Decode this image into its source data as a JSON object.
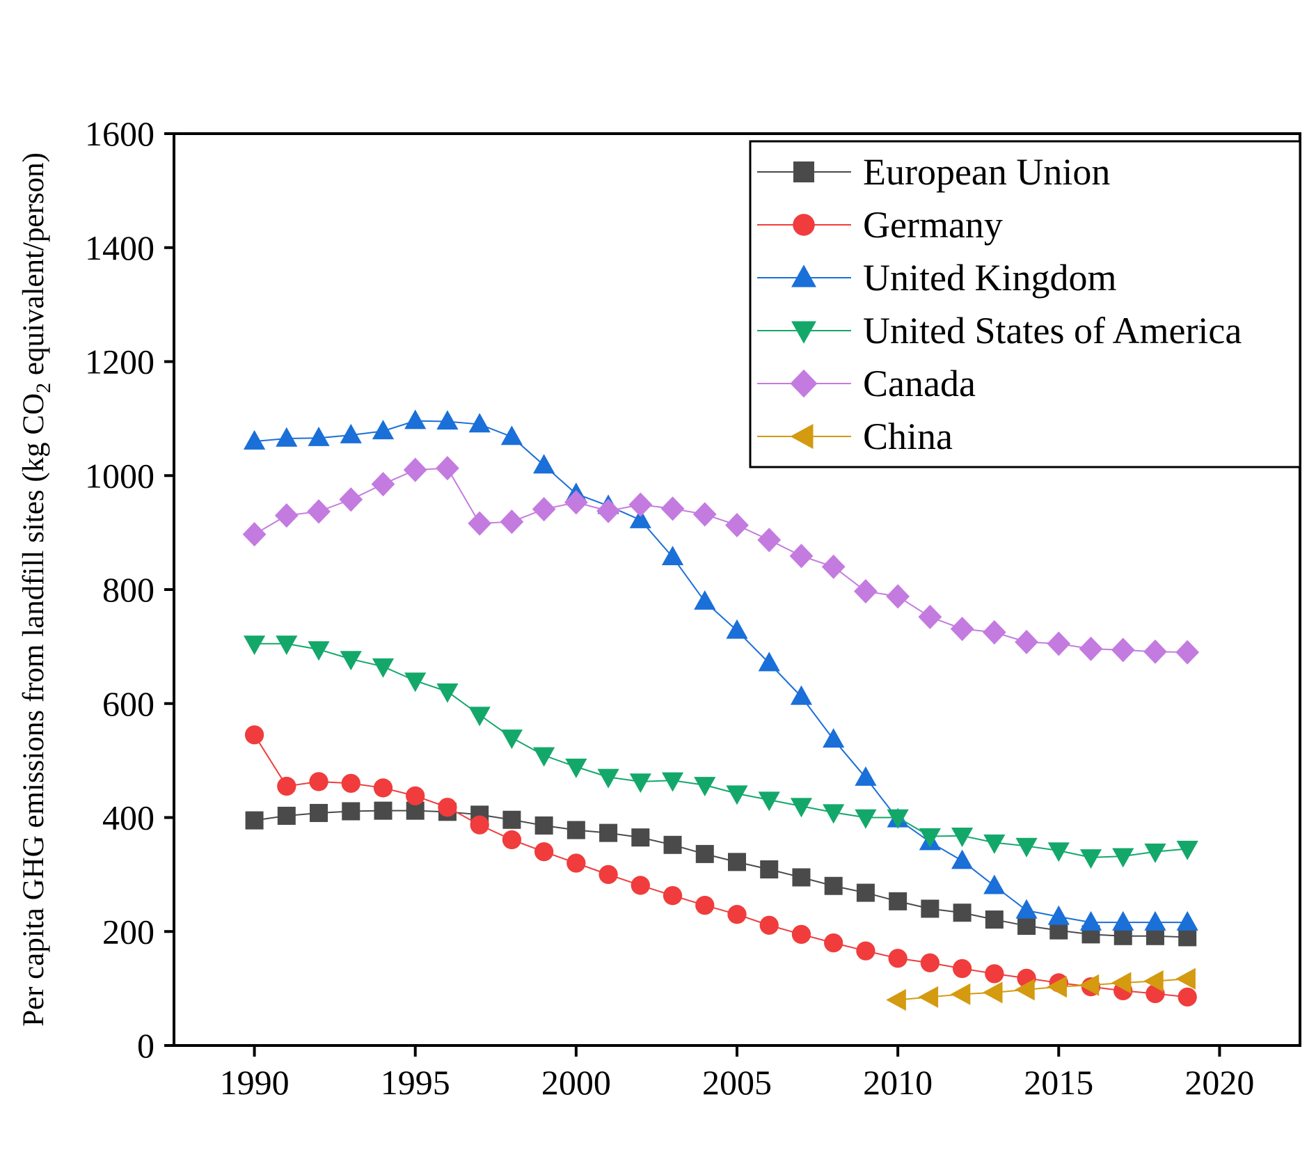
{
  "chart_data": {
    "type": "line",
    "title": "",
    "xlabel": "",
    "ylabel": "Per capita GHG emissions from landfill sites (kg CO",
    "ylabel_subscript": "2",
    "ylabel_suffix": " equivalent/person)",
    "xlim": [
      1987.5,
      2022.5
    ],
    "ylim": [
      0,
      1600
    ],
    "xticks": [
      1990,
      1995,
      2000,
      2005,
      2010,
      2015,
      2020
    ],
    "yticks": [
      0,
      200,
      400,
      600,
      800,
      1000,
      1200,
      1400,
      1600
    ],
    "legend_position": "top-right",
    "series": [
      {
        "name": "European Union",
        "color": "#4a4a4a",
        "marker": "square",
        "x": [
          1990,
          1991,
          1992,
          1993,
          1994,
          1995,
          1996,
          1997,
          1998,
          1999,
          2000,
          2001,
          2002,
          2003,
          2004,
          2005,
          2006,
          2007,
          2008,
          2009,
          2010,
          2011,
          2012,
          2013,
          2014,
          2015,
          2016,
          2017,
          2018,
          2019
        ],
        "values": [
          395,
          403,
          408,
          411,
          412,
          412,
          410,
          405,
          396,
          386,
          378,
          373,
          365,
          352,
          336,
          322,
          309,
          295,
          280,
          268,
          253,
          240,
          233,
          221,
          210,
          202,
          195,
          192,
          192,
          190
        ]
      },
      {
        "name": "Germany",
        "color": "#f03c3c",
        "marker": "circle",
        "x": [
          1990,
          1991,
          1992,
          1993,
          1994,
          1995,
          1996,
          1997,
          1998,
          1999,
          2000,
          2001,
          2002,
          2003,
          2004,
          2005,
          2006,
          2007,
          2008,
          2009,
          2010,
          2011,
          2012,
          2013,
          2014,
          2015,
          2016,
          2017,
          2018,
          2019
        ],
        "values": [
          545,
          455,
          463,
          460,
          452,
          438,
          418,
          387,
          361,
          340,
          320,
          300,
          281,
          263,
          246,
          230,
          211,
          195,
          180,
          166,
          153,
          145,
          135,
          126,
          118,
          110,
          103,
          96,
          91,
          85
        ]
      },
      {
        "name": "United Kingdom",
        "color": "#1a6fd8",
        "marker": "triangle-up",
        "x": [
          1990,
          1991,
          1992,
          1993,
          1994,
          1995,
          1996,
          1997,
          1998,
          1999,
          2000,
          2001,
          2002,
          2003,
          2004,
          2005,
          2006,
          2007,
          2008,
          2009,
          2010,
          2011,
          2012,
          2013,
          2014,
          2015,
          2016,
          2017,
          2018,
          2019
        ],
        "values": [
          1060,
          1065,
          1066,
          1071,
          1078,
          1096,
          1095,
          1090,
          1068,
          1018,
          968,
          947,
          922,
          857,
          779,
          728,
          671,
          612,
          537,
          470,
          397,
          357,
          324,
          280,
          237,
          226,
          216,
          216,
          216,
          216
        ]
      },
      {
        "name": "United States of America",
        "color": "#13a86a",
        "marker": "triangle-down",
        "x": [
          1990,
          1991,
          1992,
          1993,
          1994,
          1995,
          1996,
          1997,
          1998,
          1999,
          2000,
          2001,
          2002,
          2003,
          2004,
          2005,
          2006,
          2007,
          2008,
          2009,
          2010,
          2011,
          2012,
          2013,
          2014,
          2015,
          2016,
          2017,
          2018,
          2019
        ],
        "values": [
          705,
          705,
          695,
          678,
          665,
          640,
          621,
          580,
          540,
          509,
          489,
          471,
          463,
          465,
          457,
          442,
          431,
          420,
          409,
          400,
          400,
          367,
          368,
          356,
          350,
          342,
          330,
          332,
          340,
          345
        ]
      },
      {
        "name": "Canada",
        "color": "#c47be0",
        "marker": "diamond",
        "x": [
          1990,
          1991,
          1992,
          1993,
          1994,
          1995,
          1996,
          1997,
          1998,
          1999,
          2000,
          2001,
          2002,
          2003,
          2004,
          2005,
          2006,
          2007,
          2008,
          2009,
          2010,
          2011,
          2012,
          2013,
          2014,
          2015,
          2016,
          2017,
          2018,
          2019
        ],
        "values": [
          897,
          930,
          937,
          958,
          985,
          1010,
          1013,
          916,
          919,
          941,
          953,
          938,
          949,
          942,
          932,
          913,
          887,
          859,
          840,
          797,
          788,
          752,
          731,
          725,
          708,
          705,
          696,
          694,
          691,
          690
        ]
      },
      {
        "name": "China",
        "color": "#d49a10",
        "marker": "triangle-left",
        "x": [
          2010,
          2011,
          2012,
          2013,
          2014,
          2015,
          2016,
          2017,
          2018,
          2019
        ],
        "values": [
          80,
          85,
          90,
          93,
          98,
          103,
          106,
          110,
          113,
          117
        ]
      }
    ]
  }
}
